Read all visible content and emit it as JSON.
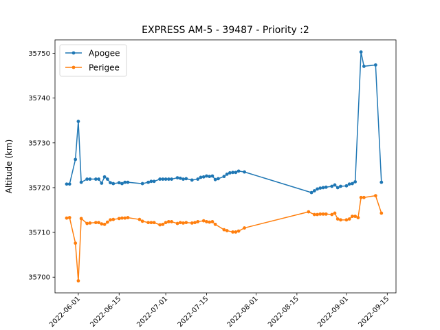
{
  "chart_data": {
    "type": "line",
    "title": "EXPRESS AM-5 - 39487 - Priority :2",
    "xlabel": "",
    "ylabel": "Altitude (km)",
    "x_ticks": [
      "2022-06-01",
      "2022-06-15",
      "2022-07-01",
      "2022-07-15",
      "2022-08-01",
      "2022-08-15",
      "2022-09-01",
      "2022-09-15"
    ],
    "y_ticks": [
      "35700",
      "35710",
      "35720",
      "35730",
      "35740",
      "35750"
    ],
    "xlim": [
      "2022-05-24",
      "2022-09-18"
    ],
    "ylim": [
      35696.5,
      35753.0
    ],
    "grid": false,
    "legend_position": "top-left",
    "series": [
      {
        "name": "Apogee",
        "color": "#1f77b4",
        "points": [
          [
            "2022-05-28",
            35720.8
          ],
          [
            "2022-05-29",
            35720.8
          ],
          [
            "2022-05-31",
            35726.3
          ],
          [
            "2022-06-01",
            35734.8
          ],
          [
            "2022-06-02",
            35721.2
          ],
          [
            "2022-06-04",
            35721.9
          ],
          [
            "2022-06-05",
            35721.9
          ],
          [
            "2022-06-07",
            35721.9
          ],
          [
            "2022-06-08",
            35721.9
          ],
          [
            "2022-06-09",
            35721.0
          ],
          [
            "2022-06-10",
            35722.4
          ],
          [
            "2022-06-11",
            35721.9
          ],
          [
            "2022-06-12",
            35721.1
          ],
          [
            "2022-06-13",
            35720.9
          ],
          [
            "2022-06-15",
            35721.1
          ],
          [
            "2022-06-16",
            35720.9
          ],
          [
            "2022-06-17",
            35721.2
          ],
          [
            "2022-06-18",
            35721.2
          ],
          [
            "2022-06-23",
            35720.9
          ],
          [
            "2022-06-25",
            35721.2
          ],
          [
            "2022-06-26",
            35721.4
          ],
          [
            "2022-06-27",
            35721.4
          ],
          [
            "2022-06-29",
            35721.9
          ],
          [
            "2022-06-30",
            35721.9
          ],
          [
            "2022-07-01",
            35721.9
          ],
          [
            "2022-07-02",
            35721.9
          ],
          [
            "2022-07-03",
            35721.9
          ],
          [
            "2022-07-05",
            35722.2
          ],
          [
            "2022-07-06",
            35722.1
          ],
          [
            "2022-07-07",
            35721.9
          ],
          [
            "2022-07-08",
            35722.0
          ],
          [
            "2022-07-10",
            35721.7
          ],
          [
            "2022-07-12",
            35721.9
          ],
          [
            "2022-07-13",
            35722.3
          ],
          [
            "2022-07-14",
            35722.4
          ],
          [
            "2022-07-15",
            35722.6
          ],
          [
            "2022-07-16",
            35722.5
          ],
          [
            "2022-07-17",
            35722.6
          ],
          [
            "2022-07-18",
            35721.8
          ],
          [
            "2022-07-19",
            35722.0
          ],
          [
            "2022-07-21",
            35722.5
          ],
          [
            "2022-07-22",
            35723.0
          ],
          [
            "2022-07-23",
            35723.3
          ],
          [
            "2022-07-24",
            35723.4
          ],
          [
            "2022-07-25",
            35723.4
          ],
          [
            "2022-07-26",
            35723.7
          ],
          [
            "2022-07-28",
            35723.5
          ],
          [
            "2022-08-20",
            35718.9
          ],
          [
            "2022-08-21",
            35719.3
          ],
          [
            "2022-08-22",
            35719.7
          ],
          [
            "2022-08-23",
            35719.9
          ],
          [
            "2022-08-24",
            35720.0
          ],
          [
            "2022-08-25",
            35720.1
          ],
          [
            "2022-08-27",
            35720.3
          ],
          [
            "2022-08-28",
            35720.6
          ],
          [
            "2022-08-29",
            35720.0
          ],
          [
            "2022-08-30",
            35720.3
          ],
          [
            "2022-09-01",
            35720.4
          ],
          [
            "2022-09-02",
            35720.8
          ],
          [
            "2022-09-03",
            35720.9
          ],
          [
            "2022-09-04",
            35721.3
          ],
          [
            "2022-09-06",
            35750.3
          ],
          [
            "2022-09-07",
            35747.1
          ],
          [
            "2022-09-11",
            35747.4
          ],
          [
            "2022-09-13",
            35721.2
          ]
        ]
      },
      {
        "name": "Perigee",
        "color": "#ff7f0e",
        "points": [
          [
            "2022-05-28",
            35713.2
          ],
          [
            "2022-05-29",
            35713.3
          ],
          [
            "2022-05-31",
            35707.6
          ],
          [
            "2022-06-01",
            35699.2
          ],
          [
            "2022-06-02",
            35713.1
          ],
          [
            "2022-06-04",
            35712.0
          ],
          [
            "2022-06-05",
            35712.1
          ],
          [
            "2022-06-07",
            35712.2
          ],
          [
            "2022-06-08",
            35712.2
          ],
          [
            "2022-06-09",
            35711.9
          ],
          [
            "2022-06-10",
            35711.8
          ],
          [
            "2022-06-11",
            35712.3
          ],
          [
            "2022-06-12",
            35712.8
          ],
          [
            "2022-06-13",
            35712.9
          ],
          [
            "2022-06-15",
            35713.1
          ],
          [
            "2022-06-16",
            35713.2
          ],
          [
            "2022-06-17",
            35713.2
          ],
          [
            "2022-06-18",
            35713.3
          ],
          [
            "2022-06-22",
            35712.9
          ],
          [
            "2022-06-23",
            35712.5
          ],
          [
            "2022-06-25",
            35712.2
          ],
          [
            "2022-06-26",
            35712.2
          ],
          [
            "2022-06-27",
            35712.2
          ],
          [
            "2022-06-29",
            35711.7
          ],
          [
            "2022-06-30",
            35711.8
          ],
          [
            "2022-07-01",
            35712.2
          ],
          [
            "2022-07-02",
            35712.4
          ],
          [
            "2022-07-03",
            35712.4
          ],
          [
            "2022-07-05",
            35712.0
          ],
          [
            "2022-07-06",
            35712.2
          ],
          [
            "2022-07-07",
            35712.1
          ],
          [
            "2022-07-08",
            35712.2
          ],
          [
            "2022-07-10",
            35712.1
          ],
          [
            "2022-07-11",
            35712.2
          ],
          [
            "2022-07-12",
            35712.4
          ],
          [
            "2022-07-14",
            35712.6
          ],
          [
            "2022-07-15",
            35712.4
          ],
          [
            "2022-07-16",
            35712.3
          ],
          [
            "2022-07-17",
            35712.4
          ],
          [
            "2022-07-18",
            35711.8
          ],
          [
            "2022-07-21",
            35710.6
          ],
          [
            "2022-07-22",
            35710.4
          ],
          [
            "2022-07-24",
            35710.1
          ],
          [
            "2022-07-25",
            35710.1
          ],
          [
            "2022-07-26",
            35710.3
          ],
          [
            "2022-07-28",
            35711.0
          ],
          [
            "2022-08-19",
            35714.6
          ],
          [
            "2022-08-21",
            35714.0
          ],
          [
            "2022-08-22",
            35714.0
          ],
          [
            "2022-08-23",
            35714.1
          ],
          [
            "2022-08-24",
            35714.1
          ],
          [
            "2022-08-25",
            35714.1
          ],
          [
            "2022-08-27",
            35714.0
          ],
          [
            "2022-08-28",
            35714.3
          ],
          [
            "2022-08-29",
            35713.0
          ],
          [
            "2022-08-30",
            35712.8
          ],
          [
            "2022-09-01",
            35712.8
          ],
          [
            "2022-09-02",
            35713.0
          ],
          [
            "2022-09-03",
            35713.6
          ],
          [
            "2022-09-04",
            35713.6
          ],
          [
            "2022-09-05",
            35713.3
          ],
          [
            "2022-09-06",
            35717.8
          ],
          [
            "2022-09-07",
            35717.8
          ],
          [
            "2022-09-11",
            35718.2
          ],
          [
            "2022-09-13",
            35714.3
          ]
        ]
      }
    ]
  }
}
